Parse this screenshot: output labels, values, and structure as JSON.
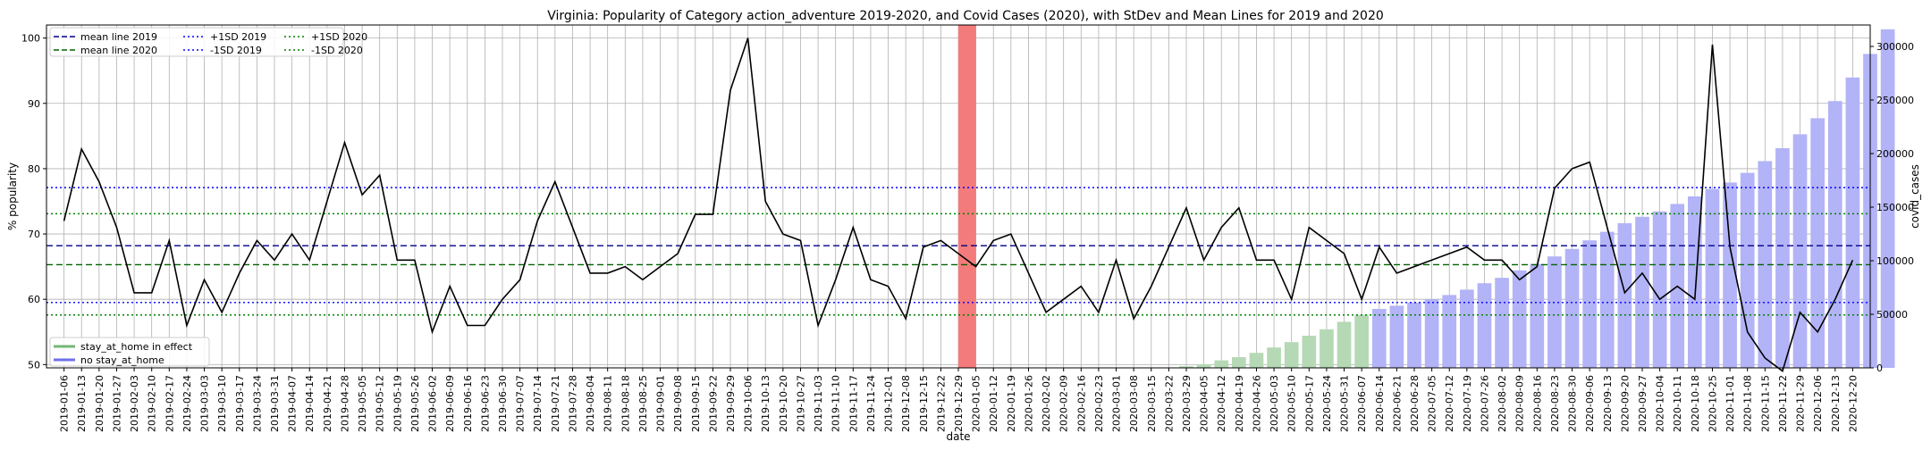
{
  "chart_data": {
    "type": "line",
    "title": "Virginia: Popularity of Category action_adventure 2019-2020, and Covid Cases (2020), with StDev and Mean Lines for 2019 and 2020",
    "xlabel": "date",
    "ylabel": "% popularity",
    "y2label": "covid_cases",
    "ylim": [
      49.5,
      102
    ],
    "y2lim": [
      0,
      320000
    ],
    "yticks": [
      50,
      60,
      70,
      80,
      90,
      100
    ],
    "y2ticks": [
      0,
      50000,
      100000,
      150000,
      200000,
      250000,
      300000
    ],
    "grid": true,
    "dates": [
      "2019-01-06",
      "2019-01-13",
      "2019-01-20",
      "2019-01-27",
      "2019-02-03",
      "2019-02-10",
      "2019-02-17",
      "2019-02-24",
      "2019-03-03",
      "2019-03-10",
      "2019-03-17",
      "2019-03-24",
      "2019-03-31",
      "2019-04-07",
      "2019-04-14",
      "2019-04-21",
      "2019-04-28",
      "2019-05-05",
      "2019-05-12",
      "2019-05-19",
      "2019-05-26",
      "2019-06-02",
      "2019-06-09",
      "2019-06-16",
      "2019-06-23",
      "2019-06-30",
      "2019-07-07",
      "2019-07-14",
      "2019-07-21",
      "2019-07-28",
      "2019-08-04",
      "2019-08-11",
      "2019-08-18",
      "2019-08-25",
      "2019-09-01",
      "2019-09-08",
      "2019-09-15",
      "2019-09-22",
      "2019-09-29",
      "2019-10-06",
      "2019-10-13",
      "2019-10-20",
      "2019-10-27",
      "2019-11-03",
      "2019-11-10",
      "2019-11-17",
      "2019-11-24",
      "2019-12-01",
      "2019-12-08",
      "2019-12-15",
      "2019-12-22",
      "2019-12-29",
      "2020-01-05",
      "2020-01-12",
      "2020-01-19",
      "2020-01-26",
      "2020-02-02",
      "2020-02-09",
      "2020-02-16",
      "2020-02-23",
      "2020-03-01",
      "2020-03-08",
      "2020-03-15",
      "2020-03-22",
      "2020-03-29",
      "2020-04-05",
      "2020-04-12",
      "2020-04-19",
      "2020-04-26",
      "2020-05-03",
      "2020-05-10",
      "2020-05-17",
      "2020-05-24",
      "2020-05-31",
      "2020-06-07",
      "2020-06-14",
      "2020-06-21",
      "2020-06-28",
      "2020-07-05",
      "2020-07-12",
      "2020-07-19",
      "2020-07-26",
      "2020-08-02",
      "2020-08-09",
      "2020-08-16",
      "2020-08-23",
      "2020-08-30",
      "2020-09-06",
      "2020-09-13",
      "2020-09-20",
      "2020-09-27",
      "2020-10-04",
      "2020-10-11",
      "2020-10-18",
      "2020-10-25",
      "2020-11-01",
      "2020-11-08",
      "2020-11-15",
      "2020-11-22",
      "2020-11-29",
      "2020-12-06",
      "2020-12-13",
      "2020-12-20"
    ],
    "popularity": [
      72,
      83,
      78,
      71,
      61,
      61,
      69,
      56,
      63,
      58,
      64,
      69,
      66,
      70,
      66,
      75,
      84,
      76,
      79,
      66,
      66,
      55,
      62,
      56,
      56,
      60,
      63,
      72,
      78,
      71,
      64,
      64,
      65,
      63,
      65,
      67,
      73,
      73,
      92,
      100,
      75,
      70,
      69,
      56,
      63,
      71,
      63,
      62,
      57,
      68,
      69,
      67,
      65,
      69,
      70,
      64,
      58,
      60,
      62,
      58,
      66,
      57,
      62,
      68,
      74,
      66,
      71,
      74,
      66,
      66,
      60,
      71,
      69,
      67,
      60,
      68,
      64,
      65,
      66,
      67,
      68,
      66,
      66,
      63,
      65,
      77,
      80,
      81,
      71,
      61,
      64,
      60,
      62,
      60,
      99,
      68,
      55,
      51,
      49,
      58,
      55,
      60,
      66
    ],
    "covid_cases": [
      0,
      0,
      0,
      0,
      0,
      0,
      0,
      0,
      0,
      0,
      0,
      0,
      0,
      0,
      0,
      0,
      0,
      0,
      0,
      0,
      0,
      0,
      0,
      0,
      0,
      0,
      0,
      0,
      0,
      0,
      0,
      0,
      0,
      0,
      0,
      0,
      0,
      0,
      0,
      0,
      0,
      0,
      0,
      0,
      0,
      0,
      0,
      0,
      0,
      0,
      0,
      0,
      0,
      0,
      0,
      0,
      0,
      0,
      0,
      0,
      0,
      0,
      0,
      200,
      1500,
      3500,
      7000,
      10000,
      14000,
      19000,
      24000,
      30000,
      36000,
      43000,
      49500,
      55000,
      58000,
      61000,
      64000,
      68000,
      73000,
      79000,
      84000,
      91000,
      97000,
      104000,
      111000,
      119000,
      127000,
      135000,
      141000,
      146000,
      153000,
      160000,
      167000,
      173000,
      182000,
      193000,
      205000,
      218000,
      233000,
      249000,
      271000,
      293000,
      316000
    ],
    "stay_at_home": [
      false,
      false,
      false,
      false,
      false,
      false,
      false,
      false,
      false,
      false,
      false,
      false,
      false,
      false,
      false,
      false,
      false,
      false,
      false,
      false,
      false,
      false,
      false,
      false,
      false,
      false,
      false,
      false,
      false,
      false,
      false,
      false,
      false,
      false,
      false,
      false,
      false,
      false,
      false,
      false,
      false,
      false,
      false,
      false,
      false,
      false,
      false,
      false,
      false,
      false,
      false,
      false,
      false,
      false,
      false,
      false,
      false,
      false,
      false,
      false,
      false,
      false,
      false,
      true,
      true,
      true,
      true,
      true,
      true,
      true,
      true,
      true,
      true,
      true,
      true,
      false,
      false,
      false,
      false,
      false,
      false,
      false,
      false,
      false,
      false,
      false,
      false,
      false,
      false,
      false,
      false,
      false,
      false,
      false,
      false,
      false,
      false,
      false,
      false,
      false,
      false,
      false,
      false
    ],
    "highlight_index": 51,
    "reference_lines": {
      "mean_2019": 68.2,
      "plus_1sd_2019": 77.1,
      "minus_1sd_2019": 59.5,
      "mean_2020": 65.3,
      "plus_1sd_2020": 73.1,
      "minus_1sd_2020": 57.6
    },
    "legend_top": [
      {
        "label": "mean line 2019",
        "color": "#00008b",
        "style": "dashed"
      },
      {
        "label": "mean line 2020",
        "color": "#006400",
        "style": "dashed"
      },
      {
        "label": "+1SD 2019",
        "color": "#0000ff",
        "style": "dotted"
      },
      {
        "label": "-1SD 2019",
        "color": "#0000ff",
        "style": "dotted"
      },
      {
        "label": "+1SD 2020",
        "color": "#008000",
        "style": "dotted"
      },
      {
        "label": "-1SD 2020",
        "color": "#008000",
        "style": "dotted"
      }
    ],
    "legend_bottom": [
      {
        "label": "stay_at_home in effect",
        "color": "#76b776"
      },
      {
        "label": "no stay_at_home",
        "color": "#7070e8"
      }
    ],
    "colors": {
      "line": "#000000",
      "bar_stay": "#b5d9b5",
      "bar_no_stay": "#b3b3f7",
      "highlight": "#f47b7b",
      "grid": "#b0b0b0"
    }
  }
}
